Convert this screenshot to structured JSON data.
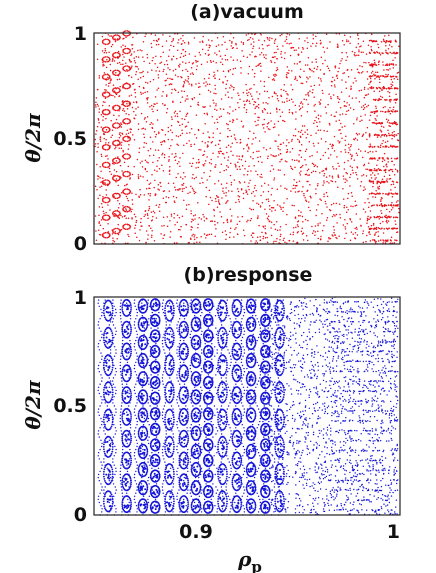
{
  "chart_data": [
    {
      "type": "scatter",
      "title": "(a)vacuum",
      "xlabel": "",
      "ylabel": "θ/2π",
      "xlim": [
        0.85,
        1.0
      ],
      "ylim": [
        0,
        1
      ],
      "y_ticks": [
        "0",
        "0.5",
        "1"
      ],
      "x_ticks": [],
      "grid": false,
      "point_color": "#e8141a",
      "pattern": "chaotic Poincaré puncture plot densely filling the domain, with small island chains near the left edge and banded structure near the right edge"
    },
    {
      "type": "scatter",
      "title": "(b)response",
      "xlabel": "ρ_p",
      "ylabel": "θ/2π",
      "xlim": [
        0.85,
        1.0
      ],
      "ylim": [
        0,
        1
      ],
      "y_ticks": [
        "0",
        "0.5",
        "1"
      ],
      "x_ticks": [
        {
          "value": 0.9,
          "label": "0.9"
        },
        {
          "value": 1.0,
          "label": "1"
        }
      ],
      "grid": false,
      "point_color": "#1414d8",
      "pattern": "nested flux-surface and island chains for ρ below ~0.94, transitioning to stochastic scattered points toward ρ = 1",
      "island_chain_positions": [
        0.857,
        0.866,
        0.874,
        0.88,
        0.887,
        0.894,
        0.9,
        0.906,
        0.913,
        0.92,
        0.927,
        0.934,
        0.941
      ]
    }
  ]
}
